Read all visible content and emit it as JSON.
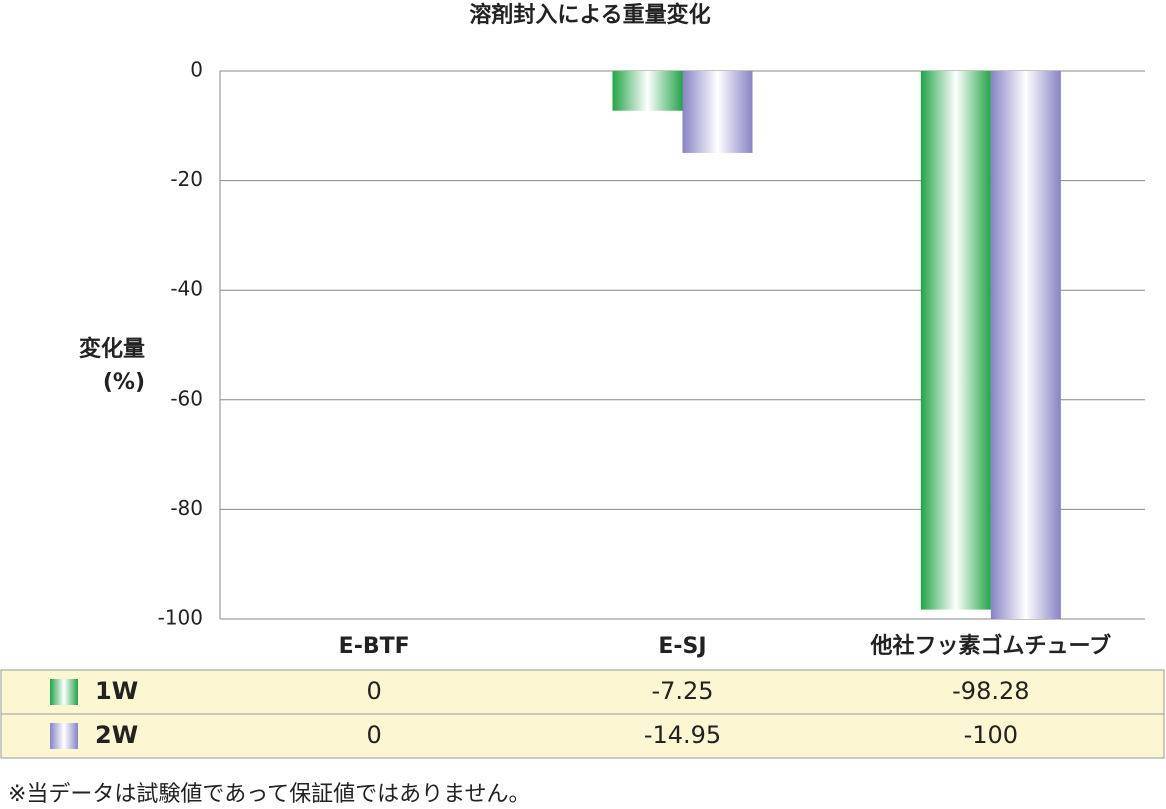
{
  "chart_data": {
    "type": "bar",
    "title": "溶剤封入による重量変化",
    "y_label": [
      "変化量",
      "(%)"
    ],
    "categories": [
      "E-BTF",
      "E-SJ",
      "他社フッ素ゴムチューブ"
    ],
    "series": [
      {
        "name": "1W",
        "color": "#22a447",
        "values": [
          0,
          -7.25,
          -98.28
        ]
      },
      {
        "name": "2W",
        "color": "#8783c4",
        "values": [
          0,
          -14.95,
          -100
        ]
      }
    ],
    "ylim": [
      -100,
      0
    ],
    "yticks": [
      0,
      -20,
      -40,
      -60,
      -80,
      -100
    ],
    "grid": true
  },
  "footnote": "※当データは試験値であって保証値ではありません。"
}
